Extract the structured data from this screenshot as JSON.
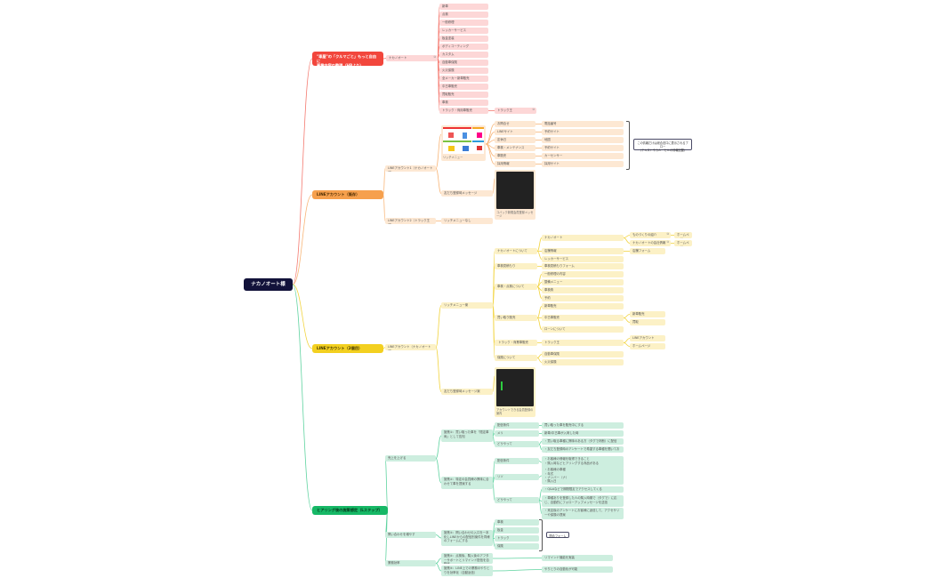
{
  "root": "ナカノオート様",
  "colors": {
    "red": "#f2463c",
    "orange": "#f6a04d",
    "yellow": "#f3d020",
    "green": "#16b866",
    "root": "#12123a"
  },
  "red": {
    "title": "\"車屋\"の「クルマごと」もっと自由に\n事業内容の整理（HPより）",
    "company": "ナカノオート",
    "items": [
      "新車",
      "点検",
      "一般修理",
      "レッカーサービス",
      "板金塗装",
      "ボディコーティング",
      "カスタム",
      "自動車保険",
      "火災保険",
      "全メーカー新車販売",
      "中古車販売",
      "買取販売",
      "車検",
      "トラック・商用車販売"
    ],
    "truck": "トラック王"
  },
  "orange": {
    "title": "LINEアカウント（既存）",
    "acc1": "LINEアカウント1（ナカノオート様）",
    "acc2": "LINEアカウント2（トラック王様）",
    "richmenu": "リッチメニュー",
    "greeting": "友だち登録時メッセージ",
    "no_richmenu": "リッチメニューなし",
    "menu_items": [
      "お問合せ",
      "LINEサイト",
      "定休日",
      "車検・メンテナンス",
      "車販売",
      "採用情報"
    ],
    "menu_links": [
      "電話番号",
      "予約サイト",
      "地図",
      "予約サイト",
      "カーセンサー",
      "採用サイト"
    ],
    "note": "この情報だけは総合窓口に表示されるブロー\n（テキストやカルーセルの情報記載）",
    "greeting_caption": "コバック新規会員登録メッセージ"
  },
  "yellow": {
    "title": "LINEアカウント（2個目）",
    "acc": "LINEアカウント（ナカノオート様）",
    "richmenu": "リッチメニュー案",
    "greeting": "友だち登録時メッセージ案",
    "menu_items": [
      "ナカノオートについて",
      "車検見積もり",
      "車検・点検について",
      "買い取り販売",
      " トラック・商業車販売",
      "保険について"
    ],
    "sub": [
      "ナカノオート",
      "店舗情報",
      "レッカーサービス",
      "車検見積もりフォーム",
      "一般修理の内容",
      "整備メニュー",
      "車検費",
      "予約",
      "新車販売",
      "中古車販売",
      "ローンについて",
      "トラック王",
      "自動車保険",
      "火災保険"
    ],
    "about": [
      "ものづくりの紹介",
      "ナカノオートの会社情報"
    ],
    "homepage": "ホームページ",
    "store_form": "店舗フォーム",
    "sales": [
      "新車販売",
      "買取"
    ],
    "truck_links": [
      "LINEアカウント",
      "ホームページ"
    ],
    "greeting_caption": "アカウントできる会員登録の案内"
  },
  "green": {
    "title": "ヒアリング後の施策想定（Lステップ）",
    "goals": [
      "売上を上げる",
      "問い合わせを増やす",
      "業務効率"
    ],
    "m1": "施策①：買い取った車を「限定車両」として告知",
    "m1_keys": [
      "配信条件",
      "メリ",
      "どうやって"
    ],
    "m1_vals": [
      "買い取った車を販売中にする",
      "新車/中古車が入荷した時",
      "・買い取る車種に興味のある方（タグで判断）に配信",
      "・友だち登録時のアンケートで希望する車種を聞いておく"
    ],
    "m2": "施策②：特定の会員様の興味に合わせて車を提案する",
    "m2_keys": [
      "配信条件",
      "リソ",
      "どうやって"
    ],
    "m2_vals": [
      "・お客様の情報を取得できること\n・購入時などヒアリングする商品がある",
      "・お客様の車種\n・年式\n・ナンバー（ナ）\n・購入日",
      "・Q&Aなどで期間限定でアクセスしてくる",
      "・車種ありを登録した人の購入時期で（タグで）に応じ、自動的にフォローアップメッセージを送信",
      "・来店後のアンケートにお客様に返信して、アクセサリーや保険の提案"
    ],
    "m3": "施策③：問い合わせの入口を一本化しLINEからの配信別案件を同様のフォームにする",
    "m3_keys": [
      "車検",
      "板金",
      "トラック",
      "保険"
    ],
    "m3_form": "問合フォーム",
    "m4": "施策④：点検後、購入後のアフターサポートとリマインド配信を自動化",
    "m4_val": "リマインド機能を実装",
    "m5": "施策⑤：LINE上での業務のやりとりを効率化（自動返信）",
    "m5_val": "やりとりの自動化が可能"
  }
}
